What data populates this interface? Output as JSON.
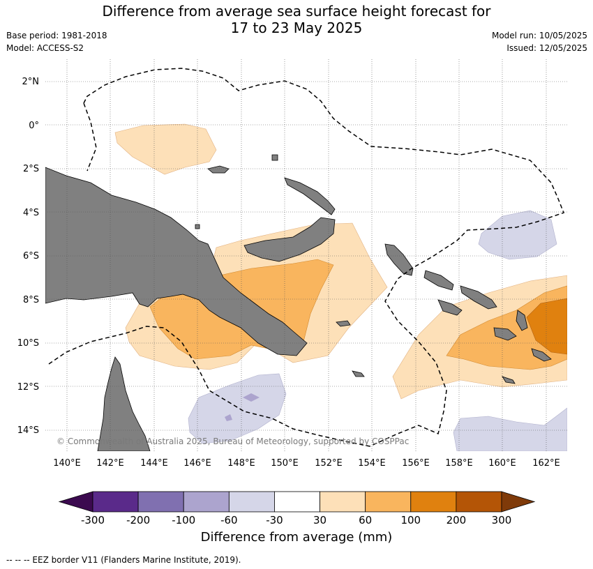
{
  "title_line1": "Difference from average sea surface height forecast for",
  "title_line2": "17 to 23 May 2025",
  "meta_left": [
    "Base period: 1981-2018",
    "Model: ACCESS-S2"
  ],
  "meta_right": [
    "Model run: 10/05/2025",
    "Issued: 12/05/2025"
  ],
  "copyright": "© Commonwealth of Australia 2025, Bureau of Meteorology, supported by COSPPac",
  "lat_labels": [
    "2°N",
    "0°",
    "2°S",
    "4°S",
    "6°S",
    "8°S",
    "10°S",
    "12°S",
    "14°S"
  ],
  "lon_labels": [
    "140°E",
    "142°E",
    "144°E",
    "146°E",
    "148°E",
    "150°E",
    "152°E",
    "154°E",
    "156°E",
    "158°E",
    "160°E",
    "162°E"
  ],
  "colorbar": {
    "title": "Difference from average (mm)",
    "tick_labels": [
      "-300",
      "-200",
      "-100",
      "-60",
      "-30",
      "30",
      "60",
      "100",
      "200",
      "300"
    ],
    "colors": [
      "#3b0a4f",
      "#5a2a8a",
      "#8070b0",
      "#aca4ce",
      "#d5d6e8",
      "#ffffff",
      "#fde0b8",
      "#f9b55e",
      "#e0810f",
      "#b45506",
      "#7f3a09"
    ]
  },
  "footer": "--  --  -- EEZ border V11 (Flanders Marine Institute, 2019).",
  "colors": {
    "land": "#808080",
    "land_edge": "#000000",
    "grid": "#555555"
  }
}
